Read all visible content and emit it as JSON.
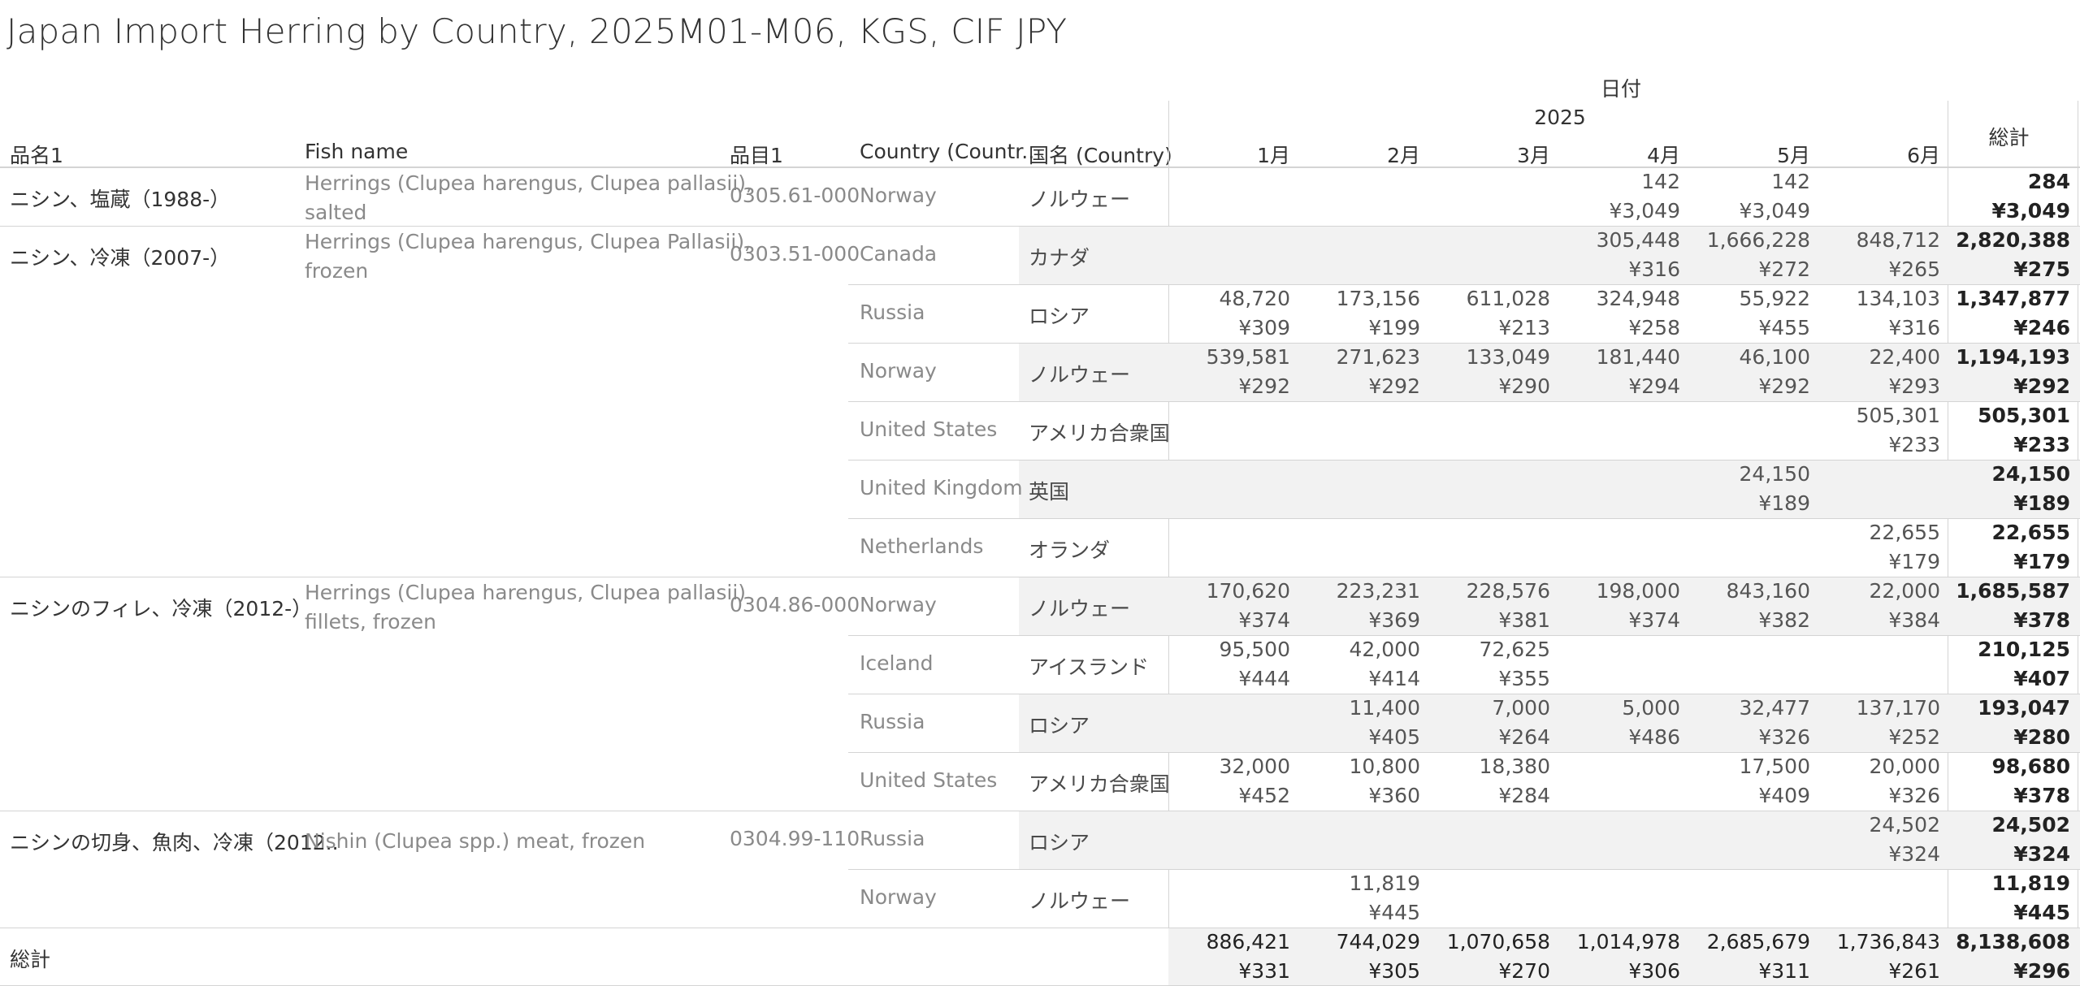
{
  "title": "Japan Import Herring by Country, 2025M01-M06, KGS, CIF JPY",
  "header": {
    "date_label": "日付",
    "year_label": "2025",
    "col_item": "品名1",
    "col_fish": "Fish name",
    "col_code": "品目1",
    "col_country": "Country (Countr..",
    "col_country_jp": "国名 (Country)",
    "months": [
      "1月",
      "2月",
      "3月",
      "4月",
      "5月",
      "6月"
    ],
    "total_label": "総計"
  },
  "rows": [
    {
      "item": "ニシン、塩蔵（1988-）",
      "fish": [
        "Herrings (Clupea harengus, Clupea pallasii),",
        "salted"
      ],
      "code": "0305.61-000",
      "country": "Norway",
      "country_jp": "ノルウェー",
      "qty": [
        "",
        "",
        "",
        "142",
        "142",
        ""
      ],
      "price": [
        "",
        "",
        "",
        "¥3,049",
        "¥3,049",
        ""
      ],
      "total_qty": "284",
      "total_price": "¥3,049"
    },
    {
      "item": "ニシン、冷凍（2007-）",
      "fish": [
        "Herrings (Clupea harengus, Clupea Pallasii),",
        "frozen"
      ],
      "code": "0303.51-000",
      "country": "Canada",
      "country_jp": "カナダ",
      "qty": [
        "",
        "",
        "",
        "305,448",
        "1,666,228",
        "848,712"
      ],
      "price": [
        "",
        "",
        "",
        "¥316",
        "¥272",
        "¥265"
      ],
      "total_qty": "2,820,388",
      "total_price": "¥275"
    },
    {
      "item": "",
      "fish": [
        "",
        ""
      ],
      "code": "",
      "country": "Russia",
      "country_jp": "ロシア",
      "qty": [
        "48,720",
        "173,156",
        "611,028",
        "324,948",
        "55,922",
        "134,103"
      ],
      "price": [
        "¥309",
        "¥199",
        "¥213",
        "¥258",
        "¥455",
        "¥316"
      ],
      "total_qty": "1,347,877",
      "total_price": "¥246"
    },
    {
      "item": "",
      "fish": [
        "",
        ""
      ],
      "code": "",
      "country": "Norway",
      "country_jp": "ノルウェー",
      "qty": [
        "539,581",
        "271,623",
        "133,049",
        "181,440",
        "46,100",
        "22,400"
      ],
      "price": [
        "¥292",
        "¥292",
        "¥290",
        "¥294",
        "¥292",
        "¥293"
      ],
      "total_qty": "1,194,193",
      "total_price": "¥292"
    },
    {
      "item": "",
      "fish": [
        "",
        ""
      ],
      "code": "",
      "country": "United States",
      "country_jp": "アメリカ合衆国",
      "qty": [
        "",
        "",
        "",
        "",
        "",
        "505,301"
      ],
      "price": [
        "",
        "",
        "",
        "",
        "",
        "¥233"
      ],
      "total_qty": "505,301",
      "total_price": "¥233"
    },
    {
      "item": "",
      "fish": [
        "",
        ""
      ],
      "code": "",
      "country": "United Kingdom",
      "country_jp": "英国",
      "qty": [
        "",
        "",
        "",
        "",
        "24,150",
        ""
      ],
      "price": [
        "",
        "",
        "",
        "",
        "¥189",
        ""
      ],
      "total_qty": "24,150",
      "total_price": "¥189"
    },
    {
      "item": "",
      "fish": [
        "",
        ""
      ],
      "code": "",
      "country": "Netherlands",
      "country_jp": "オランダ",
      "qty": [
        "",
        "",
        "",
        "",
        "",
        "22,655"
      ],
      "price": [
        "",
        "",
        "",
        "",
        "",
        "¥179"
      ],
      "total_qty": "22,655",
      "total_price": "¥179"
    },
    {
      "item": "ニシンのフィレ、冷凍（2012-）",
      "fish": [
        "Herrings (Clupea harengus, Clupea pallasii)",
        "fillets, frozen"
      ],
      "code": "0304.86-000",
      "country": "Norway",
      "country_jp": "ノルウェー",
      "qty": [
        "170,620",
        "223,231",
        "228,576",
        "198,000",
        "843,160",
        "22,000"
      ],
      "price": [
        "¥374",
        "¥369",
        "¥381",
        "¥374",
        "¥382",
        "¥384"
      ],
      "total_qty": "1,685,587",
      "total_price": "¥378"
    },
    {
      "item": "",
      "fish": [
        "",
        ""
      ],
      "code": "",
      "country": "Iceland",
      "country_jp": "アイスランド",
      "qty": [
        "95,500",
        "42,000",
        "72,625",
        "",
        "",
        ""
      ],
      "price": [
        "¥444",
        "¥414",
        "¥355",
        "",
        "",
        ""
      ],
      "total_qty": "210,125",
      "total_price": "¥407"
    },
    {
      "item": "",
      "fish": [
        "",
        ""
      ],
      "code": "",
      "country": "Russia",
      "country_jp": "ロシア",
      "qty": [
        "",
        "11,400",
        "7,000",
        "5,000",
        "32,477",
        "137,170"
      ],
      "price": [
        "",
        "¥405",
        "¥264",
        "¥486",
        "¥326",
        "¥252"
      ],
      "total_qty": "193,047",
      "total_price": "¥280"
    },
    {
      "item": "",
      "fish": [
        "",
        ""
      ],
      "code": "",
      "country": "United States",
      "country_jp": "アメリカ合衆国",
      "qty": [
        "32,000",
        "10,800",
        "18,380",
        "",
        "17,500",
        "20,000"
      ],
      "price": [
        "¥452",
        "¥360",
        "¥284",
        "",
        "¥409",
        "¥326"
      ],
      "total_qty": "98,680",
      "total_price": "¥378"
    },
    {
      "item": "ニシンの切身、魚肉、冷凍（2012..",
      "fish": [
        "Nishin (Clupea spp.) meat, frozen",
        ""
      ],
      "code": "0304.99-110",
      "country": "Russia",
      "country_jp": "ロシア",
      "qty": [
        "",
        "",
        "",
        "",
        "",
        "24,502"
      ],
      "price": [
        "",
        "",
        "",
        "",
        "",
        "¥324"
      ],
      "total_qty": "24,502",
      "total_price": "¥324"
    },
    {
      "item": "",
      "fish": [
        "",
        ""
      ],
      "code": "",
      "country": "Norway",
      "country_jp": "ノルウェー",
      "qty": [
        "",
        "11,819",
        "",
        "",
        "",
        ""
      ],
      "price": [
        "",
        "¥445",
        "",
        "",
        "",
        ""
      ],
      "total_qty": "11,819",
      "total_price": "¥445"
    }
  ],
  "grand_total": {
    "label": "総計",
    "qty": [
      "886,421",
      "744,029",
      "1,070,658",
      "1,014,978",
      "2,685,679",
      "1,736,843"
    ],
    "price": [
      "¥331",
      "¥305",
      "¥270",
      "¥306",
      "¥311",
      "¥261"
    ],
    "total_qty": "8,138,608",
    "total_price": "¥296"
  },
  "colors": {
    "shade": "#f2f2f2",
    "rule": "#d4d4d4",
    "text": "#333333",
    "muted": "#8a8a8a"
  }
}
